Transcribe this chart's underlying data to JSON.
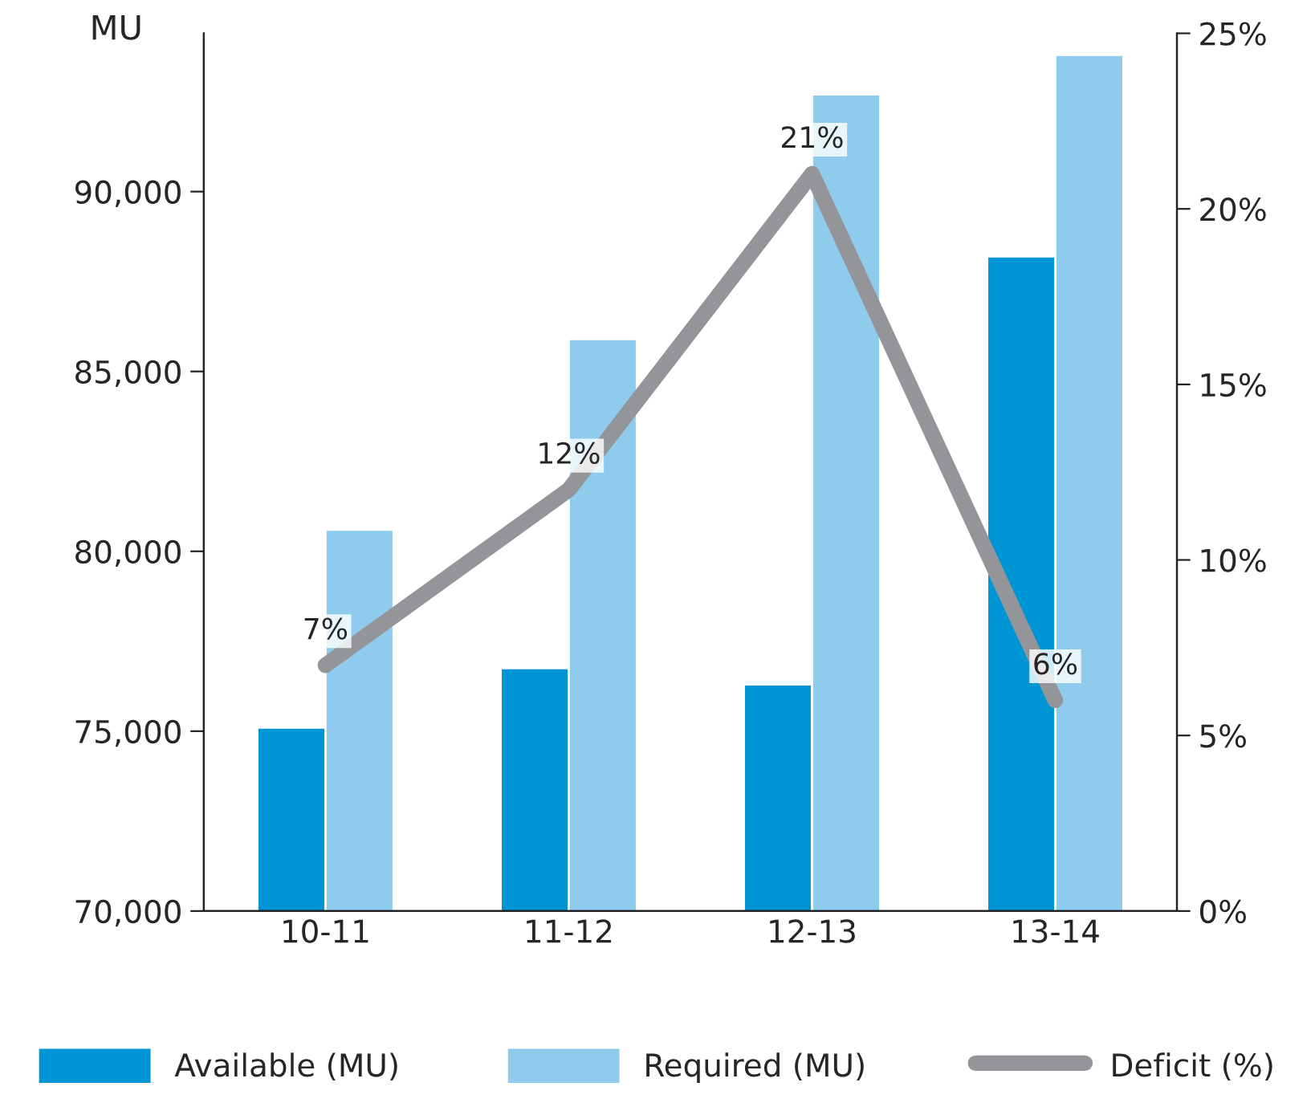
{
  "chart_data": {
    "type": "bar",
    "ylabel": "MU",
    "categories": [
      "10-11",
      "11-12",
      "12-13",
      "13-14"
    ],
    "series": [
      {
        "name": "Available (MU)",
        "color": "#0096d6",
        "values": [
          75100,
          76750,
          76300,
          88200
        ]
      },
      {
        "name": "Required (MU)",
        "color": "#8ecbec",
        "values": [
          80600,
          85900,
          92700,
          93800
        ]
      },
      {
        "name": "Deficit (%)",
        "type": "line",
        "axis": "y2",
        "color": "#939598",
        "values": [
          7,
          12,
          21,
          6
        ],
        "value_labels": [
          "7%",
          "12%",
          "21%",
          "6%"
        ]
      }
    ],
    "ylim": [
      70000,
      94400
    ],
    "yticks": [
      {
        "value": 70000,
        "label": "70,000"
      },
      {
        "value": 75000,
        "label": "75,000"
      },
      {
        "value": 80000,
        "label": "80,000"
      },
      {
        "value": 85000,
        "label": "85,000"
      },
      {
        "value": 90000,
        "label": "90,000"
      }
    ],
    "y2lim": [
      0,
      25
    ],
    "y2ticks": [
      {
        "value": 0,
        "label": "0%"
      },
      {
        "value": 5,
        "label": "5%"
      },
      {
        "value": 10,
        "label": "10%"
      },
      {
        "value": 15,
        "label": "15%"
      },
      {
        "value": 20,
        "label": "20%"
      },
      {
        "value": 25,
        "label": "25%"
      }
    ],
    "grid": false,
    "legend": "bottom",
    "marker": "none",
    "line_style": "solid"
  }
}
